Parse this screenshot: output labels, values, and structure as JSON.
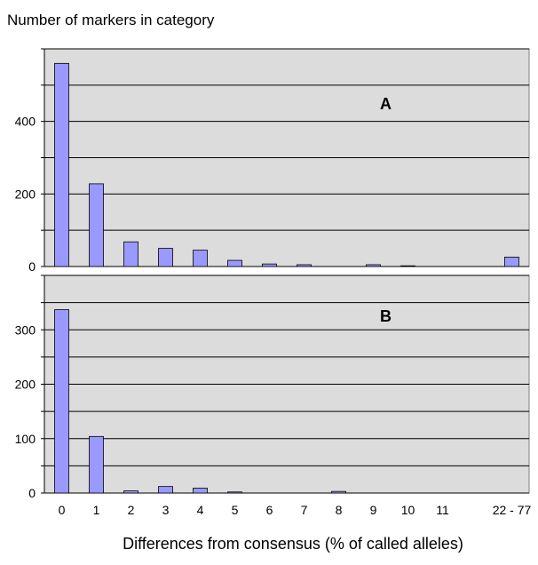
{
  "chart_data": {
    "type": "bar",
    "ylabel": "Number of markers in category",
    "xlabel": "Differences from consensus (% of called alleles)",
    "categories": [
      "0",
      "1",
      "2",
      "3",
      "4",
      "5",
      "6",
      "7",
      "8",
      "9",
      "10",
      "11",
      "",
      "22 - 77"
    ],
    "grid": true,
    "colors": {
      "bar": "#9999ff",
      "plot_bg": "#dcdcdc",
      "grid": "#000000"
    },
    "panels": [
      {
        "label": "A",
        "ylim": [
          0,
          600
        ],
        "yticks": [
          0,
          200,
          400
        ],
        "values": [
          560,
          228,
          68,
          50,
          45,
          17,
          7,
          5,
          0,
          5,
          2,
          0,
          0,
          26
        ]
      },
      {
        "label": "B",
        "ylim": [
          0,
          400
        ],
        "yticks": [
          0,
          100,
          200,
          300
        ],
        "values": [
          337,
          104,
          4,
          12,
          9,
          2,
          0,
          0,
          3,
          0,
          0,
          0,
          0,
          0
        ]
      }
    ]
  }
}
